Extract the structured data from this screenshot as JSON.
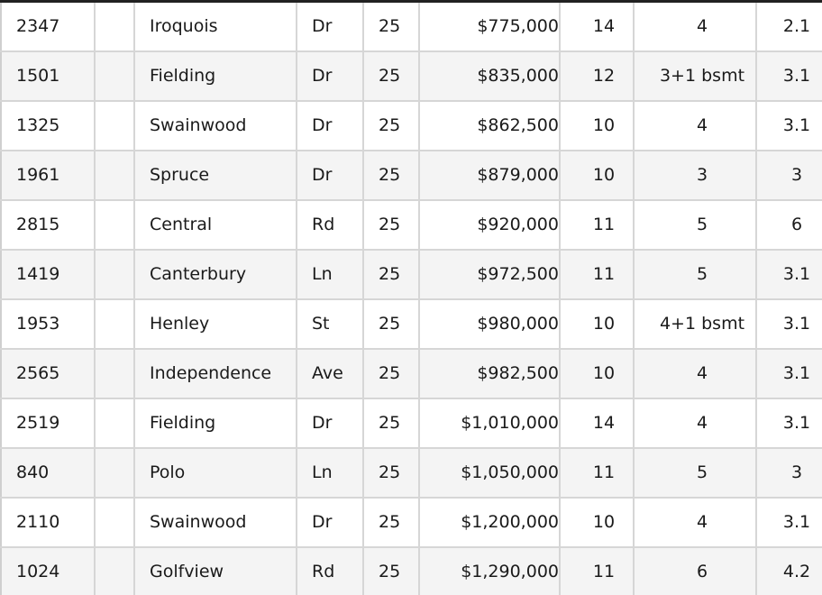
{
  "listings": [
    {
      "number": "2347",
      "unit": "",
      "street": "Iroquois",
      "type": "Dr",
      "col5": "25",
      "price": "$775,000",
      "col7": "14",
      "bedrooms": "4",
      "baths": "2.1"
    },
    {
      "number": "1501",
      "unit": "",
      "street": "Fielding",
      "type": "Dr",
      "col5": "25",
      "price": "$835,000",
      "col7": "12",
      "bedrooms": "3+1 bsmt",
      "baths": "3.1"
    },
    {
      "number": "1325",
      "unit": "",
      "street": "Swainwood",
      "type": "Dr",
      "col5": "25",
      "price": "$862,500",
      "col7": "10",
      "bedrooms": "4",
      "baths": "3.1"
    },
    {
      "number": "1961",
      "unit": "",
      "street": "Spruce",
      "type": "Dr",
      "col5": "25",
      "price": "$879,000",
      "col7": "10",
      "bedrooms": "3",
      "baths": "3"
    },
    {
      "number": "2815",
      "unit": "",
      "street": "Central",
      "type": "Rd",
      "col5": "25",
      "price": "$920,000",
      "col7": "11",
      "bedrooms": "5",
      "baths": "6"
    },
    {
      "number": "1419",
      "unit": "",
      "street": "Canterbury",
      "type": "Ln",
      "col5": "25",
      "price": "$972,500",
      "col7": "11",
      "bedrooms": "5",
      "baths": "3.1"
    },
    {
      "number": "1953",
      "unit": "",
      "street": "Henley",
      "type": "St",
      "col5": "25",
      "price": "$980,000",
      "col7": "10",
      "bedrooms": "4+1 bsmt",
      "baths": "3.1"
    },
    {
      "number": "2565",
      "unit": "",
      "street": "Independence",
      "type": "Ave",
      "col5": "25",
      "price": "$982,500",
      "col7": "10",
      "bedrooms": "4",
      "baths": "3.1"
    },
    {
      "number": "2519",
      "unit": "",
      "street": "Fielding",
      "type": "Dr",
      "col5": "25",
      "price": "$1,010,000",
      "col7": "14",
      "bedrooms": "4",
      "baths": "3.1"
    },
    {
      "number": "840",
      "unit": "",
      "street": "Polo",
      "type": "Ln",
      "col5": "25",
      "price": "$1,050,000",
      "col7": "11",
      "bedrooms": "5",
      "baths": "3"
    },
    {
      "number": "2110",
      "unit": "",
      "street": "Swainwood",
      "type": "Dr",
      "col5": "25",
      "price": "$1,200,000",
      "col7": "10",
      "bedrooms": "4",
      "baths": "3.1"
    },
    {
      "number": "1024",
      "unit": "",
      "street": "Golfview",
      "type": "Rd",
      "col5": "25",
      "price": "$1,290,000",
      "col7": "11",
      "bedrooms": "6",
      "baths": "4.2"
    }
  ]
}
